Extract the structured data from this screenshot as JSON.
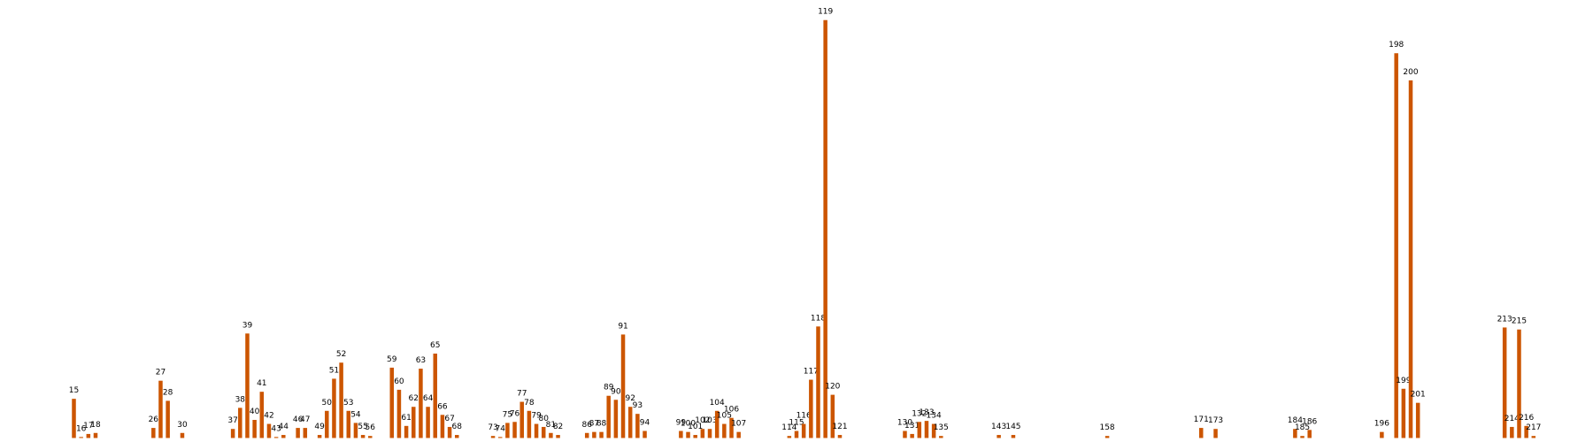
{
  "chart_data": {
    "type": "bar",
    "color": "#cc5500",
    "x": [
      15,
      16,
      17,
      18,
      26,
      27,
      28,
      30,
      37,
      38,
      39,
      40,
      41,
      42,
      43,
      44,
      46,
      47,
      49,
      50,
      51,
      52,
      53,
      54,
      55,
      56,
      59,
      60,
      61,
      62,
      63,
      64,
      65,
      66,
      67,
      68,
      73,
      74,
      75,
      76,
      77,
      78,
      79,
      80,
      81,
      82,
      86,
      87,
      88,
      89,
      90,
      91,
      92,
      93,
      94,
      99,
      100,
      101,
      102,
      103,
      104,
      105,
      106,
      107,
      114,
      115,
      116,
      117,
      118,
      119,
      120,
      121,
      130,
      131,
      132,
      133,
      134,
      135,
      143,
      145,
      158,
      171,
      173,
      184,
      185,
      186,
      196,
      198,
      199,
      200,
      201,
      213,
      214,
      215,
      216,
      217
    ],
    "values": [
      39,
      1,
      4,
      5,
      10,
      57,
      37,
      5,
      9,
      30,
      104,
      18,
      46,
      14,
      1,
      3,
      10,
      10,
      3,
      27,
      59,
      75,
      27,
      15,
      3,
      2,
      70,
      48,
      12,
      31,
      69,
      31,
      84,
      23,
      11,
      3,
      2,
      1,
      15,
      16,
      36,
      27,
      14,
      11,
      5,
      3,
      5,
      6,
      6,
      42,
      38,
      103,
      31,
      24,
      7,
      7,
      6,
      3,
      9,
      9,
      27,
      14,
      20,
      6,
      2,
      7,
      14,
      58,
      111,
      416,
      43,
      3,
      7,
      4,
      16,
      17,
      14,
      2,
      3,
      3,
      2,
      10,
      9,
      9,
      2,
      8,
      6,
      383,
      49,
      356,
      35,
      110,
      11,
      108,
      12,
      2
    ]
  }
}
